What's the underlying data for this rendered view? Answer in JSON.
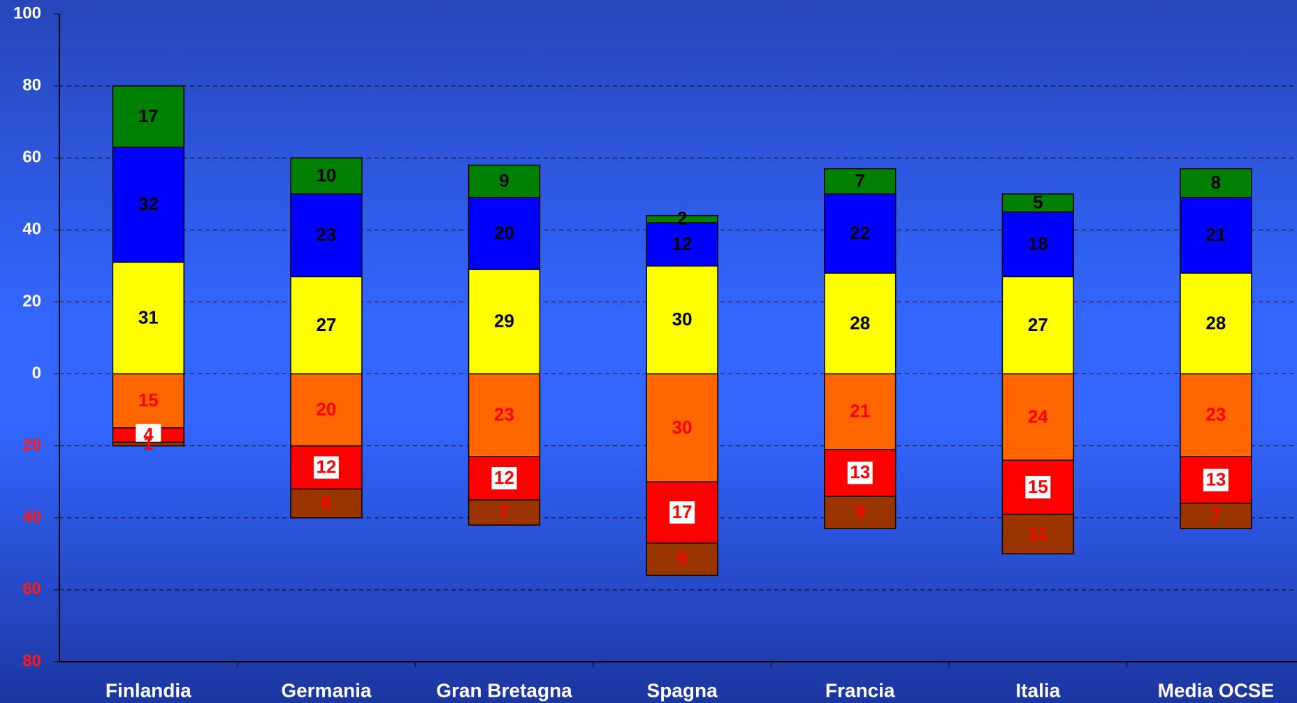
{
  "chart_data": {
    "type": "stacked_bar",
    "categories": [
      "Finlandia",
      "Germania",
      "Gran Bretagna",
      "Spagna",
      "Francia",
      "Italia",
      "Media OCSE"
    ],
    "series": [
      {
        "color": "#ffff00",
        "values": [
          31,
          27,
          29,
          30,
          28,
          27,
          28
        ]
      },
      {
        "color": "#0000ff",
        "values": [
          32,
          23,
          20,
          12,
          22,
          18,
          21
        ]
      },
      {
        "color": "#008000",
        "values": [
          17,
          10,
          9,
          2,
          7,
          5,
          8
        ]
      },
      {
        "color": "#ff6600",
        "values": [
          -15,
          -20,
          -23,
          -30,
          -21,
          -24,
          -23
        ],
        "value_labels": [
          "15",
          "20",
          "23",
          "30",
          "21",
          "24",
          "23"
        ]
      },
      {
        "color": "#ff0000",
        "values": [
          -4,
          -12,
          -12,
          -17,
          -13,
          -15,
          -13
        ],
        "value_labels": [
          "4",
          "12",
          "12",
          "17",
          "13",
          "15",
          "13"
        ]
      },
      {
        "color": "#993300",
        "values": [
          -1,
          -8,
          -7,
          -9,
          -9,
          -11,
          -7
        ],
        "value_labels": [
          "1",
          "8",
          "7",
          "9",
          "9",
          "11",
          "7"
        ]
      }
    ],
    "ylim": [
      -80,
      100
    ],
    "yticks": [
      {
        "value": -80,
        "label": "80"
      },
      {
        "value": -60,
        "label": "60"
      },
      {
        "value": -40,
        "label": "40"
      },
      {
        "value": -20,
        "label": "20"
      },
      0,
      20,
      40,
      60,
      80,
      100
    ],
    "grid": true
  }
}
